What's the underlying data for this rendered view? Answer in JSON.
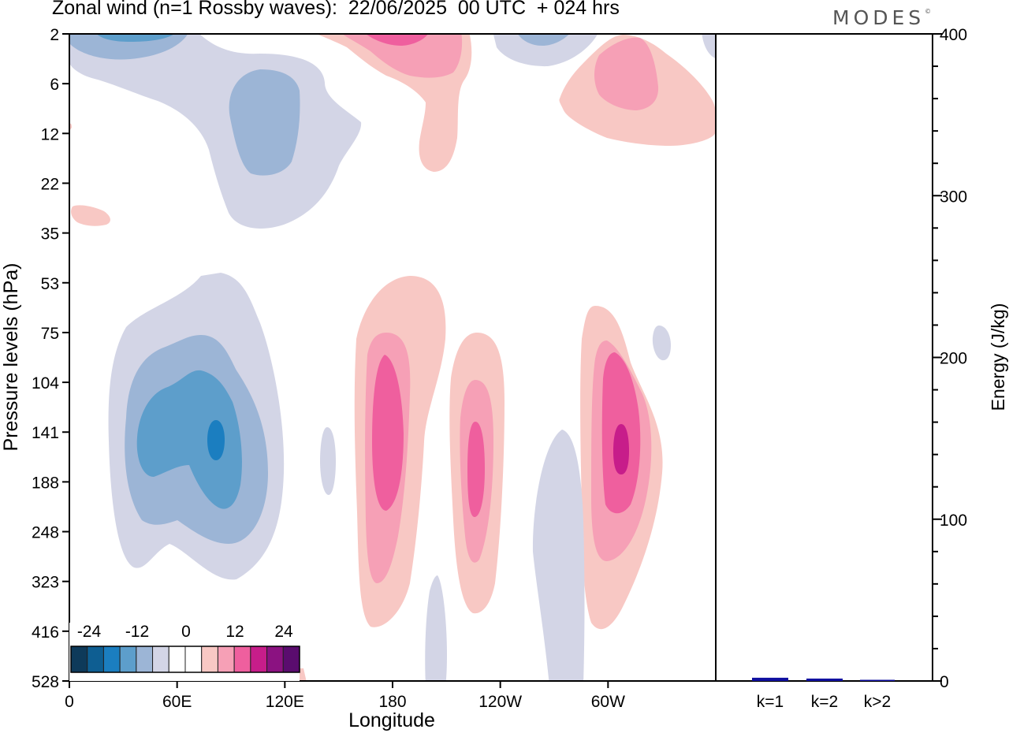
{
  "header": {
    "title": "Zonal wind (n=1 Rossby waves):  22/06/2025  00 UTC  + 024 hrs",
    "logo": "MODES",
    "logo_mark": "©"
  },
  "chart_data": [
    {
      "type": "heatmap",
      "title": "Zonal wind (n=1 Rossby waves):  22/06/2025  00 UTC  + 024 hrs",
      "xlabel": "Longitude",
      "ylabel": "Pressure levels (hPa)",
      "x_tick_labels": [
        "0",
        "60E",
        "120E",
        "180",
        "120W",
        "60W"
      ],
      "x_ticks_degrees_east": [
        0,
        60,
        120,
        180,
        240,
        300
      ],
      "xlim_degrees_east": [
        0,
        360
      ],
      "y_tick_labels": [
        "2",
        "6",
        "12",
        "22",
        "35",
        "53",
        "75",
        "104",
        "141",
        "188",
        "248",
        "323",
        "416",
        "528"
      ],
      "y_axis_top_to_bottom": true,
      "colorbar": {
        "tick_labels": [
          "-24",
          "-12",
          "0",
          "12",
          "24"
        ],
        "colors": [
          "#0e3a5a",
          "#0e5e92",
          "#1b7ec0",
          "#5d9ecb",
          "#9cb5d6",
          "#d3d5e6",
          "#ffffff",
          "#ffffff",
          "#f8c8c4",
          "#f6a0b6",
          "#ef5f9e",
          "#c71d8a",
          "#8b1281",
          "#5a0c6e"
        ]
      },
      "features": [
        {
          "sign": "negative",
          "lon_range": [
            25,
            120
          ],
          "level_range": [
            "53",
            "323"
          ],
          "min_approx": -20
        },
        {
          "sign": "positive",
          "lon_range": [
            160,
            205
          ],
          "level_range": [
            "53",
            "416"
          ],
          "max_approx": 15
        },
        {
          "sign": "positive",
          "lon_range": [
            210,
            245
          ],
          "level_range": [
            "75",
            "416"
          ],
          "max_approx": 15
        },
        {
          "sign": "positive",
          "lon_range": [
            285,
            330
          ],
          "level_range": [
            "75",
            "416"
          ],
          "max_approx": 19
        },
        {
          "sign": "negative",
          "lon_range": [
            255,
            275
          ],
          "level_range": [
            "141",
            "528"
          ],
          "min_approx": -3
        },
        {
          "sign": "negative",
          "lon_range": [
            40,
            145
          ],
          "level_range": [
            "2",
            "35"
          ],
          "min_approx": -8
        },
        {
          "sign": "positive",
          "lon_range": [
            135,
            215
          ],
          "level_range": [
            "2",
            "22"
          ],
          "max_approx": 10
        },
        {
          "sign": "positive",
          "lon_range": [
            275,
            360
          ],
          "level_range": [
            "2",
            "12"
          ],
          "max_approx": 9
        }
      ]
    },
    {
      "type": "bar",
      "ylabel": "Energy (J/kg)",
      "categories": [
        "k=1",
        "k=2",
        "k>2"
      ],
      "values": [
        2,
        1.5,
        0.5
      ],
      "ylim": [
        0,
        400
      ],
      "y_tick_labels": [
        "0",
        "100",
        "200",
        "300",
        "400"
      ],
      "bar_color": "#1010a0"
    }
  ]
}
